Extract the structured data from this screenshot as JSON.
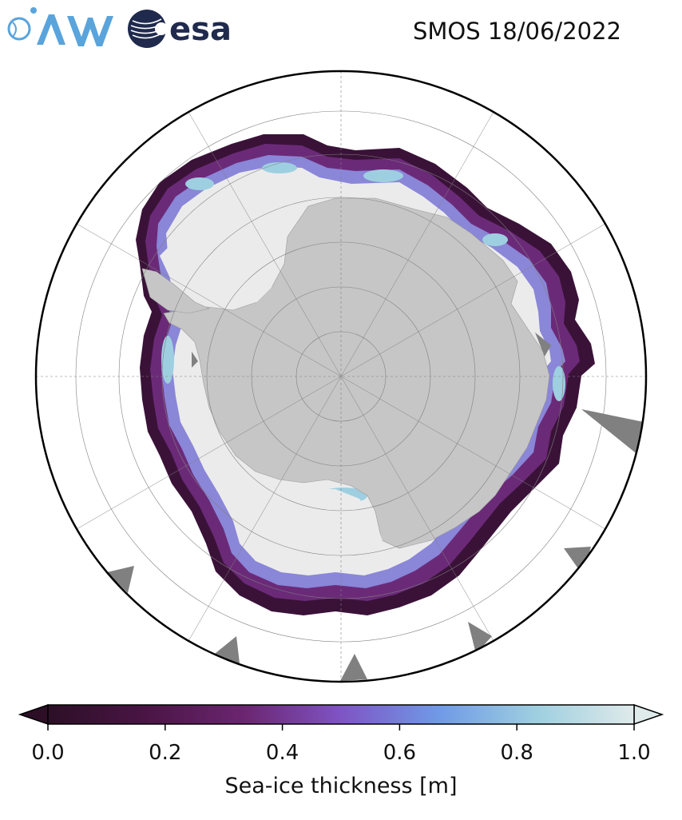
{
  "header": {
    "title": "SMOS 18/06/2022",
    "logos": [
      {
        "name": "awi-logo",
        "text": "AWI"
      },
      {
        "name": "esa-logo",
        "text": "esa"
      }
    ]
  },
  "map": {
    "projection": "south-polar-stereographic",
    "colors": {
      "land": "#c6c6c6",
      "thick_ice": "#ebebeb",
      "ocean": "#ffffff",
      "missing": "#808080",
      "grid": "#808080"
    }
  },
  "colorbar": {
    "label": "Sea-ice thickness [m]",
    "range": [
      0.0,
      1.0
    ],
    "extend": "both",
    "ticks": [
      "0.0",
      "0.2",
      "0.4",
      "0.6",
      "0.8",
      "1.0"
    ],
    "colors": [
      "#2c0f26",
      "#4a1545",
      "#6b2570",
      "#7f54c4",
      "#6f9ae6",
      "#9ecfe0",
      "#dfeaea"
    ]
  }
}
